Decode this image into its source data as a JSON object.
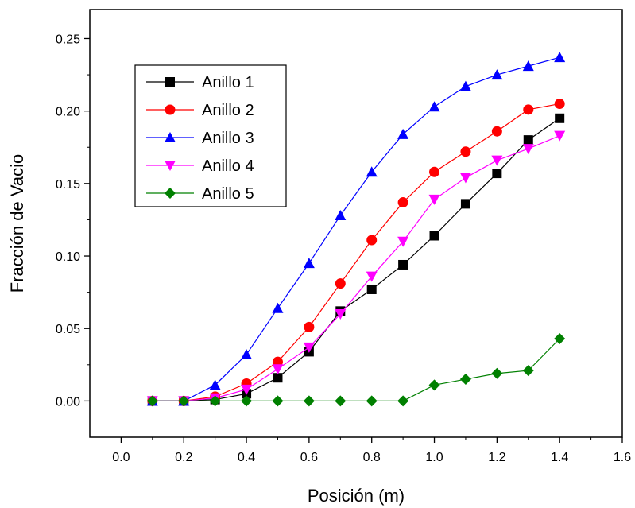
{
  "chart_data": {
    "type": "line",
    "title": "",
    "xlabel": "Posición (m)",
    "ylabel": "Fracción de Vacio",
    "xlim": [
      -0.1,
      1.6
    ],
    "ylim": [
      -0.025,
      0.27
    ],
    "xticks": [
      "0.0",
      "0.2",
      "0.4",
      "0.6",
      "0.8",
      "1.0",
      "1.2",
      "1.4",
      "1.6"
    ],
    "yticks": [
      "0.00",
      "0.05",
      "0.10",
      "0.15",
      "0.20",
      "0.25"
    ],
    "grid": false,
    "legend_position": "top-left",
    "x": [
      0.1,
      0.2,
      0.3,
      0.4,
      0.5,
      0.6,
      0.7,
      0.8,
      0.9,
      1.0,
      1.1,
      1.2,
      1.3,
      1.4
    ],
    "series": [
      {
        "name": "Anillo 1",
        "color": "#000000",
        "marker": "square",
        "values": [
          0.0,
          0.0,
          0.001,
          0.005,
          0.016,
          0.034,
          0.062,
          0.077,
          0.094,
          0.114,
          0.136,
          0.157,
          0.18,
          0.195
        ]
      },
      {
        "name": "Anillo 2",
        "color": "#ff0000",
        "marker": "circle",
        "values": [
          0.0,
          0.0,
          0.003,
          0.012,
          0.027,
          0.051,
          0.081,
          0.111,
          0.137,
          0.158,
          0.172,
          0.186,
          0.201,
          0.205
        ]
      },
      {
        "name": "Anillo 3",
        "color": "#0000ff",
        "marker": "triangle-up",
        "values": [
          0.0,
          0.0,
          0.011,
          0.032,
          0.064,
          0.095,
          0.128,
          0.158,
          0.184,
          0.203,
          0.217,
          0.225,
          0.231,
          0.237
        ]
      },
      {
        "name": "Anillo 4",
        "color": "#ff00ff",
        "marker": "triangle-down",
        "values": [
          0.0,
          0.0,
          0.002,
          0.008,
          0.022,
          0.037,
          0.06,
          0.086,
          0.11,
          0.139,
          0.154,
          0.166,
          0.174,
          0.183
        ]
      },
      {
        "name": "Anillo 5",
        "color": "#008000",
        "marker": "diamond",
        "values": [
          0.0,
          0.0,
          0.0,
          0.0,
          0.0,
          0.0,
          0.0,
          0.0,
          0.0,
          0.011,
          0.015,
          0.019,
          0.021,
          0.043
        ]
      }
    ]
  }
}
